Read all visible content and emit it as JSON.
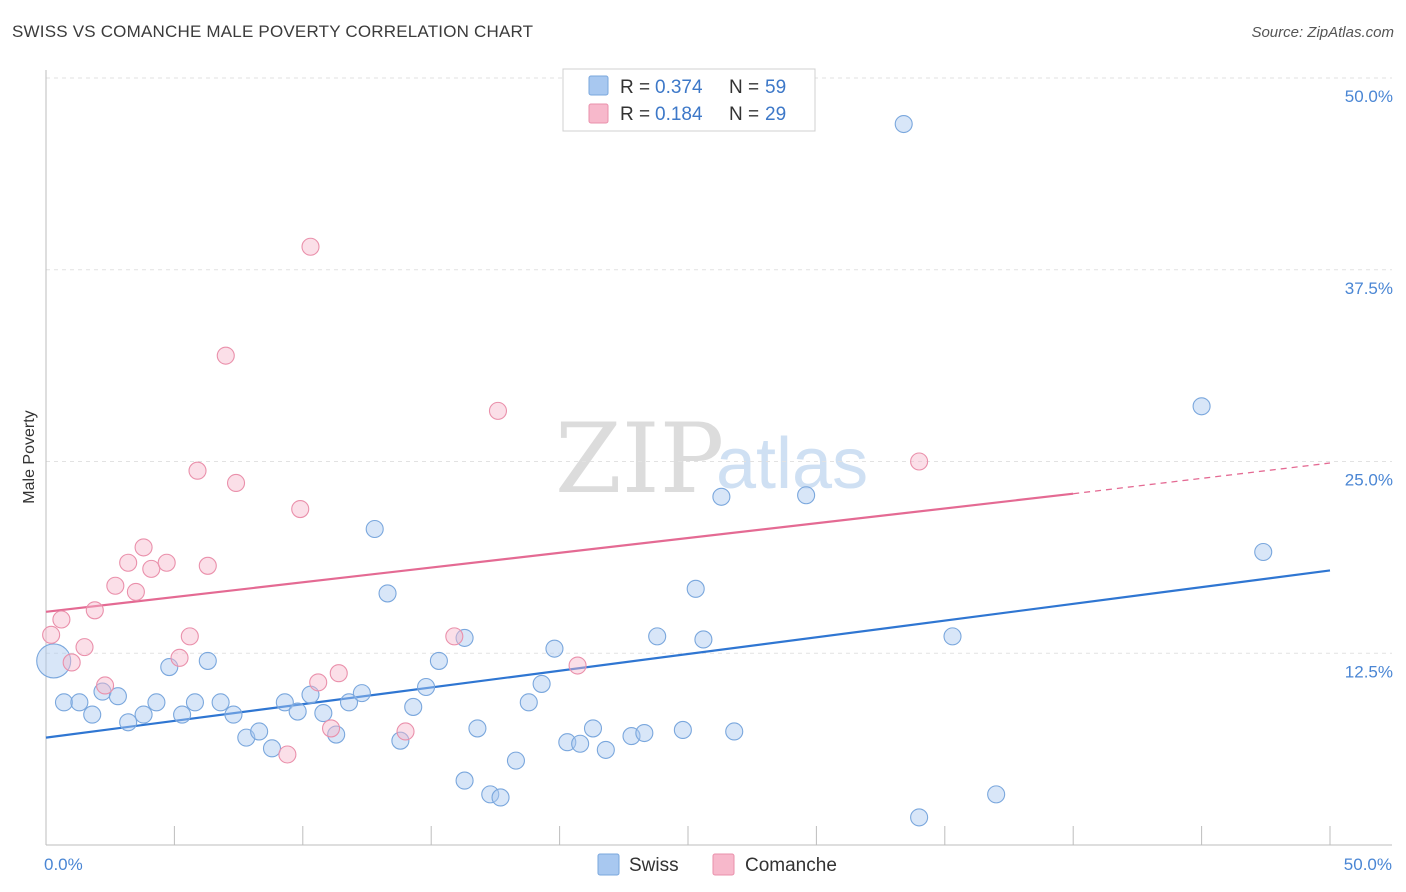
{
  "header": {
    "title": "SWISS VS COMANCHE MALE POVERTY CORRELATION CHART",
    "source": "Source: ZipAtlas.com"
  },
  "watermark": {
    "zip": "ZIP",
    "atlas": "atlas"
  },
  "legend": {
    "rows": [
      {
        "r_label": "R =",
        "r_value": "0.374",
        "n_label": "N =",
        "n_value": "59",
        "color": "#a8c8f0"
      },
      {
        "r_label": "R =",
        "r_value": "0.184",
        "n_label": "N =",
        "n_value": "29",
        "color": "#f7b8cb"
      }
    ]
  },
  "bottom_legend": [
    {
      "name": "Swiss",
      "color": "#a8c8f0"
    },
    {
      "name": "Comanche",
      "color": "#f7b8cb"
    }
  ],
  "chart_data": {
    "type": "scatter",
    "xlabel": "",
    "ylabel": "Male Poverty",
    "xlim": [
      0,
      50
    ],
    "ylim": [
      0,
      50
    ],
    "x_tick_labels": {
      "min": "0.0%",
      "max": "50.0%"
    },
    "y_ticks": [
      {
        "value": 12.5,
        "label": "12.5%"
      },
      {
        "value": 25.0,
        "label": "25.0%"
      },
      {
        "value": 37.5,
        "label": "37.5%"
      },
      {
        "value": 50.0,
        "label": "50.0%"
      }
    ],
    "grid": true,
    "series": [
      {
        "name": "Swiss",
        "color": "#a8c8f0",
        "stroke": "#7aa7dd",
        "trend_color": "#2f76d2",
        "trend": {
          "x0": 0,
          "y0": 7.0,
          "x1": 50,
          "y1": 17.9
        },
        "points": [
          [
            0.3,
            12.0
          ],
          [
            0.7,
            9.3
          ],
          [
            1.3,
            9.3
          ],
          [
            1.8,
            8.5
          ],
          [
            2.2,
            10.0
          ],
          [
            2.8,
            9.7
          ],
          [
            3.2,
            8.0
          ],
          [
            3.8,
            8.5
          ],
          [
            4.3,
            9.3
          ],
          [
            4.8,
            11.6
          ],
          [
            5.3,
            8.5
          ],
          [
            5.8,
            9.3
          ],
          [
            6.3,
            12.0
          ],
          [
            6.8,
            9.3
          ],
          [
            7.3,
            8.5
          ],
          [
            7.8,
            7.0
          ],
          [
            8.3,
            7.4
          ],
          [
            8.8,
            6.3
          ],
          [
            9.3,
            9.3
          ],
          [
            9.8,
            8.7
          ],
          [
            10.3,
            9.8
          ],
          [
            10.8,
            8.6
          ],
          [
            11.3,
            7.2
          ],
          [
            11.8,
            9.3
          ],
          [
            12.3,
            9.9
          ],
          [
            12.8,
            20.6
          ],
          [
            13.3,
            16.4
          ],
          [
            13.8,
            6.8
          ],
          [
            14.3,
            9.0
          ],
          [
            14.8,
            10.3
          ],
          [
            15.3,
            12.0
          ],
          [
            16.3,
            13.5
          ],
          [
            16.8,
            7.6
          ],
          [
            17.3,
            3.3
          ],
          [
            17.7,
            3.1
          ],
          [
            18.3,
            5.5
          ],
          [
            18.8,
            9.3
          ],
          [
            19.3,
            10.5
          ],
          [
            19.8,
            12.8
          ],
          [
            20.3,
            6.7
          ],
          [
            20.8,
            6.6
          ],
          [
            21.3,
            7.6
          ],
          [
            21.8,
            6.2
          ],
          [
            22.8,
            7.1
          ],
          [
            23.3,
            7.3
          ],
          [
            23.8,
            13.6
          ],
          [
            24.8,
            7.5
          ],
          [
            25.3,
            16.7
          ],
          [
            25.6,
            13.4
          ],
          [
            26.3,
            22.7
          ],
          [
            26.8,
            7.4
          ],
          [
            29.6,
            22.8
          ],
          [
            33.4,
            47.0
          ],
          [
            34.0,
            1.8
          ],
          [
            35.3,
            13.6
          ],
          [
            37.0,
            3.3
          ],
          [
            45.0,
            28.6
          ],
          [
            47.4,
            19.1
          ],
          [
            16.3,
            4.2
          ]
        ]
      },
      {
        "name": "Comanche",
        "color": "#f7b8cb",
        "stroke": "#ea90ab",
        "trend_color": "#e46a93",
        "trend": {
          "x0": 0,
          "y0": 15.2,
          "x1": 40,
          "y1": 22.9
        },
        "trend_dashed": {
          "x0": 40,
          "y0": 22.9,
          "x1": 50,
          "y1": 24.9
        },
        "points": [
          [
            0.2,
            13.7
          ],
          [
            0.6,
            14.7
          ],
          [
            1.0,
            11.9
          ],
          [
            1.5,
            12.9
          ],
          [
            1.9,
            15.3
          ],
          [
            2.3,
            10.4
          ],
          [
            2.7,
            16.9
          ],
          [
            3.2,
            18.4
          ],
          [
            3.5,
            16.5
          ],
          [
            3.8,
            19.4
          ],
          [
            4.1,
            18.0
          ],
          [
            4.7,
            18.4
          ],
          [
            5.2,
            12.2
          ],
          [
            5.6,
            13.6
          ],
          [
            5.9,
            24.4
          ],
          [
            6.3,
            18.2
          ],
          [
            7.0,
            31.9
          ],
          [
            7.4,
            23.6
          ],
          [
            9.4,
            5.9
          ],
          [
            9.9,
            21.9
          ],
          [
            10.3,
            39.0
          ],
          [
            10.6,
            10.6
          ],
          [
            11.1,
            7.6
          ],
          [
            11.4,
            11.2
          ],
          [
            15.9,
            13.6
          ],
          [
            17.6,
            28.3
          ],
          [
            20.7,
            11.7
          ],
          [
            34.0,
            25.0
          ],
          [
            14.0,
            7.4
          ]
        ]
      }
    ]
  }
}
